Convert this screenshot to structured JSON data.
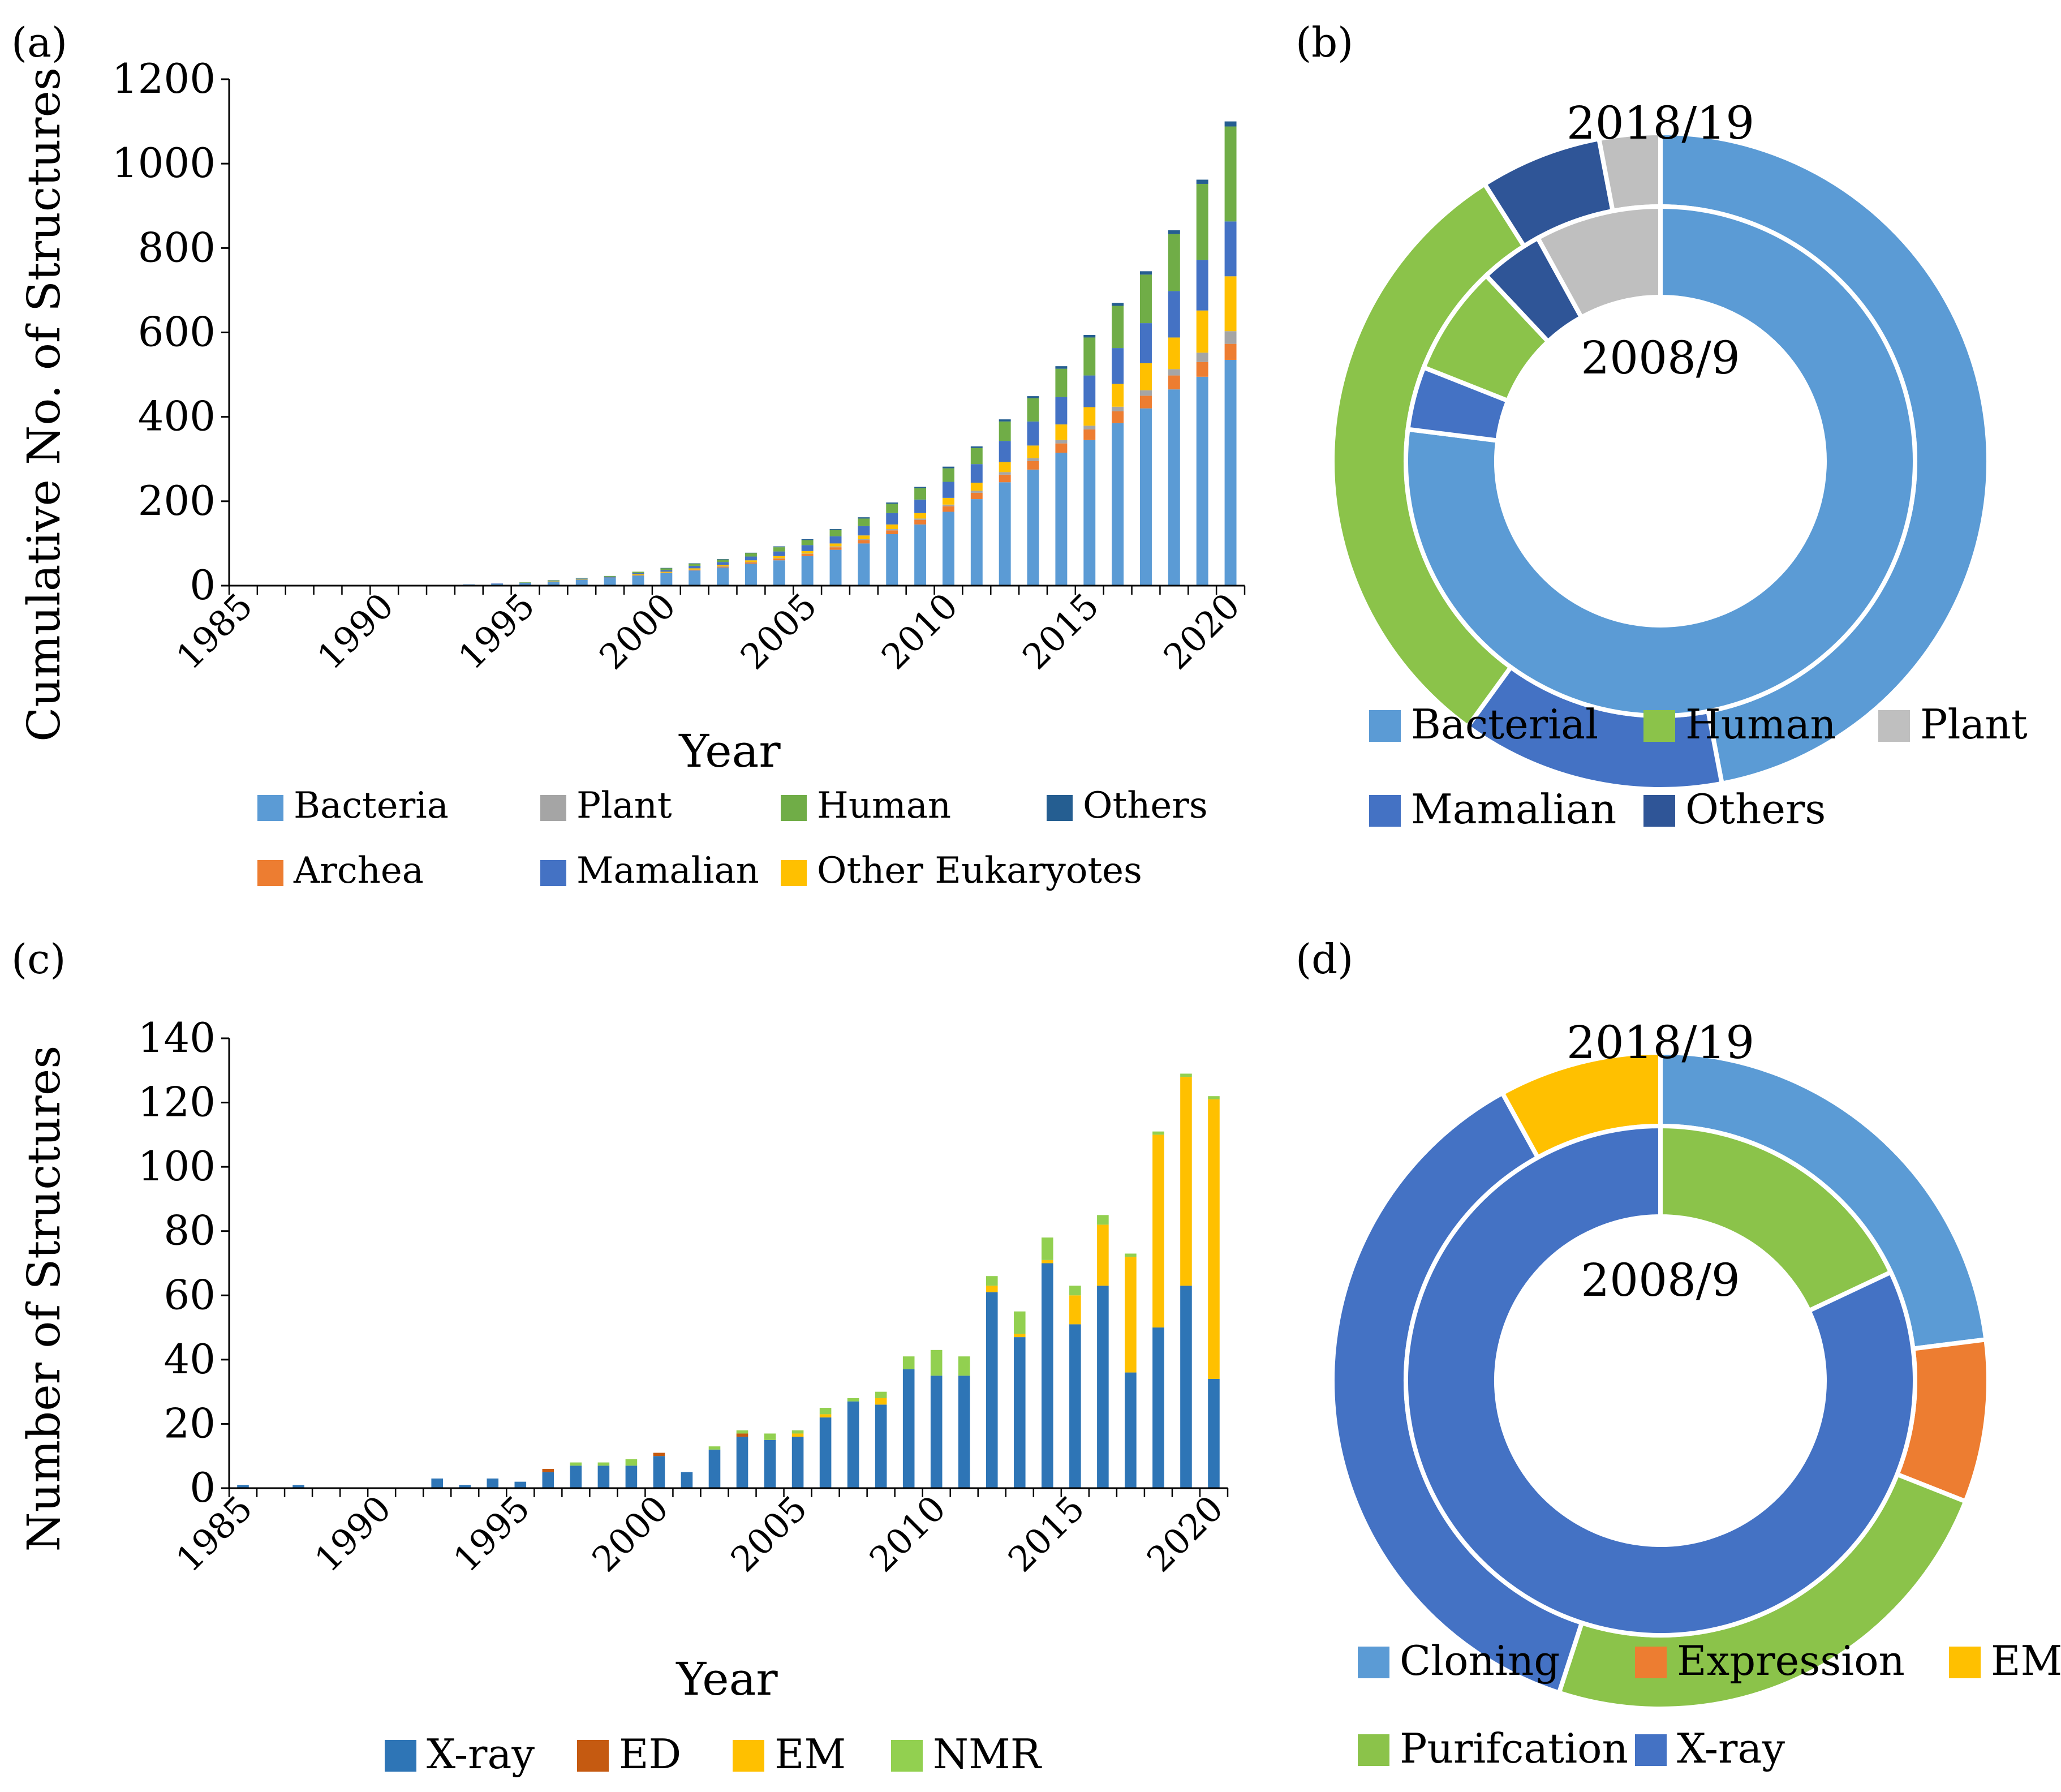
{
  "panels": {
    "a": {
      "label": "(a)"
    },
    "b": {
      "label": "(b)"
    },
    "c": {
      "label": "(c)"
    },
    "d": {
      "label": "(d)"
    }
  },
  "chart_data": [
    {
      "id": "a",
      "type": "bar",
      "stacked": true,
      "title": "",
      "xlabel": "Year",
      "ylabel": "Cumulative No. of Structures",
      "ylim": [
        0,
        1200
      ],
      "yticks": [
        0,
        200,
        400,
        600,
        800,
        1000,
        1200
      ],
      "xtick_labels": [
        "1985",
        "1990",
        "1995",
        "2000",
        "2005",
        "2010",
        "2015",
        "2020"
      ],
      "categories": [
        1985,
        1986,
        1987,
        1988,
        1989,
        1990,
        1991,
        1992,
        1993,
        1994,
        1995,
        1996,
        1997,
        1998,
        1999,
        2000,
        2001,
        2002,
        2003,
        2004,
        2005,
        2006,
        2007,
        2008,
        2009,
        2010,
        2011,
        2012,
        2013,
        2014,
        2015,
        2016,
        2017,
        2018,
        2019,
        2020
      ],
      "series": [
        {
          "name": "Bacteria",
          "color": "#5B9BD5",
          "values": [
            1,
            1,
            1,
            1,
            1,
            1,
            1,
            2,
            3,
            4,
            6,
            10,
            14,
            18,
            24,
            30,
            36,
            43,
            52,
            60,
            70,
            85,
            100,
            122,
            145,
            175,
            205,
            245,
            275,
            315,
            345,
            385,
            420,
            465,
            495,
            535
          ]
        },
        {
          "name": "Archea",
          "color": "#ED7D31",
          "values": [
            0,
            0,
            0,
            0,
            0,
            0,
            0,
            0,
            0,
            0,
            0,
            0,
            0,
            0,
            1,
            1,
            2,
            2,
            3,
            4,
            5,
            6,
            8,
            9,
            11,
            13,
            15,
            18,
            20,
            22,
            25,
            28,
            30,
            33,
            35,
            38
          ]
        },
        {
          "name": "Plant",
          "color": "#A5A5A5",
          "values": [
            0,
            0,
            0,
            0,
            0,
            0,
            0,
            0,
            0,
            0,
            0,
            0,
            0,
            0,
            0,
            0,
            0,
            1,
            1,
            1,
            1,
            2,
            2,
            3,
            3,
            4,
            5,
            6,
            7,
            8,
            9,
            11,
            13,
            15,
            22,
            30
          ]
        },
        {
          "name": "Other Eukaryotes",
          "color": "#FFC000",
          "values": [
            0,
            0,
            0,
            0,
            0,
            0,
            0,
            0,
            0,
            0,
            0,
            1,
            1,
            1,
            2,
            2,
            3,
            3,
            4,
            5,
            6,
            7,
            9,
            11,
            13,
            16,
            19,
            24,
            30,
            37,
            44,
            54,
            64,
            75,
            100,
            130
          ]
        },
        {
          "name": "Mamalian",
          "color": "#4472C4",
          "values": [
            0,
            0,
            0,
            0,
            0,
            0,
            0,
            0,
            0,
            1,
            1,
            1,
            2,
            2,
            3,
            4,
            6,
            7,
            9,
            11,
            14,
            17,
            22,
            27,
            32,
            38,
            44,
            50,
            57,
            65,
            75,
            85,
            95,
            110,
            120,
            130
          ]
        },
        {
          "name": "Human",
          "color": "#70AD47",
          "values": [
            0,
            0,
            0,
            0,
            0,
            0,
            0,
            0,
            0,
            0,
            1,
            1,
            1,
            2,
            3,
            4,
            5,
            6,
            8,
            10,
            12,
            15,
            18,
            22,
            27,
            32,
            38,
            46,
            55,
            67,
            90,
            100,
            115,
            135,
            180,
            225
          ]
        },
        {
          "name": "Others",
          "color": "#255E91",
          "values": [
            0,
            0,
            0,
            0,
            0,
            0,
            0,
            0,
            0,
            0,
            0,
            0,
            0,
            0,
            0,
            1,
            1,
            1,
            1,
            2,
            2,
            2,
            3,
            3,
            3,
            4,
            4,
            5,
            5,
            6,
            6,
            7,
            8,
            9,
            10,
            12
          ]
        }
      ],
      "legend": {
        "position": "bottom",
        "entries": [
          "Bacteria",
          "Plant",
          "Human",
          "Others",
          "Archea",
          "Mamalian",
          "Other Eukaryotes"
        ]
      }
    },
    {
      "id": "b",
      "type": "pie",
      "subtype": "donut",
      "outer_label": "2018/19",
      "inner_label": "2008/9",
      "outer_ring": [
        {
          "name": "Bacterial",
          "value": 47,
          "color": "#5B9BD5"
        },
        {
          "name": "Mamalian",
          "value": 13,
          "color": "#4472C4"
        },
        {
          "name": "Human",
          "value": 31,
          "color": "#8BC34A"
        },
        {
          "name": "Others",
          "value": 6,
          "color": "#2F5597"
        },
        {
          "name": "Plant",
          "value": 3,
          "color": "#BFBFBF"
        }
      ],
      "inner_ring": [
        {
          "name": "Bacterial",
          "value": 77,
          "color": "#5B9BD5"
        },
        {
          "name": "Mamalian",
          "value": 4,
          "color": "#4472C4"
        },
        {
          "name": "Human",
          "value": 7,
          "color": "#8BC34A"
        },
        {
          "name": "Others",
          "value": 4,
          "color": "#2F5597"
        },
        {
          "name": "Plant",
          "value": 8,
          "color": "#BFBFBF"
        }
      ],
      "legend": {
        "position": "bottom",
        "entries": [
          "Bacterial",
          "Human",
          "Plant",
          "Mamalian",
          "Others"
        ]
      }
    },
    {
      "id": "c",
      "type": "bar",
      "stacked": true,
      "title": "",
      "xlabel": "Year",
      "ylabel": "Number of Structures",
      "ylim": [
        0,
        140
      ],
      "yticks": [
        0,
        20,
        40,
        60,
        80,
        100,
        120,
        140
      ],
      "xtick_labels": [
        "1985",
        "1990",
        "1995",
        "2000",
        "2005",
        "2010",
        "2015",
        "2020"
      ],
      "categories": [
        1985,
        1986,
        1987,
        1988,
        1989,
        1990,
        1991,
        1992,
        1993,
        1994,
        1995,
        1996,
        1997,
        1998,
        1999,
        2000,
        2001,
        2002,
        2003,
        2004,
        2005,
        2006,
        2007,
        2008,
        2009,
        2010,
        2011,
        2012,
        2013,
        2014,
        2015,
        2016,
        2017,
        2018,
        2019,
        2020
      ],
      "series": [
        {
          "name": "X-ray",
          "color": "#2E75B6",
          "values": [
            1,
            0,
            1,
            0,
            0,
            0,
            0,
            3,
            1,
            3,
            2,
            5,
            7,
            7,
            7,
            10,
            5,
            12,
            16,
            15,
            16,
            22,
            27,
            26,
            37,
            35,
            35,
            61,
            47,
            70,
            51,
            63,
            36,
            50,
            63,
            34
          ]
        },
        {
          "name": "ED",
          "color": "#C55A11",
          "values": [
            0,
            0,
            0,
            0,
            0,
            0,
            0,
            0,
            0,
            0,
            0,
            1,
            0,
            0,
            0,
            1,
            0,
            0,
            1,
            0,
            0,
            0,
            0,
            0,
            0,
            0,
            0,
            0,
            0,
            0,
            0,
            0,
            0,
            0,
            0,
            0
          ]
        },
        {
          "name": "EM",
          "color": "#FFC000",
          "values": [
            0,
            0,
            0,
            0,
            0,
            0,
            0,
            0,
            0,
            0,
            0,
            0,
            0,
            0,
            0,
            0,
            0,
            0,
            0,
            0,
            1,
            1,
            0,
            2,
            0,
            0,
            0,
            2,
            1,
            1,
            9,
            19,
            36,
            60,
            65,
            87
          ]
        },
        {
          "name": "NMR",
          "color": "#92D050",
          "values": [
            0,
            0,
            0,
            0,
            0,
            0,
            0,
            0,
            0,
            0,
            0,
            0,
            1,
            1,
            2,
            0,
            0,
            1,
            1,
            2,
            1,
            2,
            1,
            2,
            4,
            8,
            6,
            3,
            7,
            7,
            3,
            3,
            1,
            1,
            1,
            1
          ]
        }
      ],
      "legend": {
        "position": "bottom",
        "entries": [
          "X-ray",
          "ED",
          "EM",
          "NMR"
        ]
      }
    },
    {
      "id": "d",
      "type": "pie",
      "subtype": "donut",
      "outer_label": "2018/19",
      "inner_label": "2008/9",
      "outer_ring": [
        {
          "name": "Cloning",
          "value": 23,
          "color": "#5B9BD5"
        },
        {
          "name": "Expression",
          "value": 8,
          "color": "#ED7D31"
        },
        {
          "name": "Purifcation",
          "value": 24,
          "color": "#8BC34A"
        },
        {
          "name": "X-ray",
          "value": 37,
          "color": "#4472C4"
        },
        {
          "name": "EM",
          "value": 8,
          "color": "#FFC000"
        }
      ],
      "inner_ring": [
        {
          "name": "Purifcation",
          "value": 18,
          "color": "#8BC34A"
        },
        {
          "name": "X-ray",
          "value": 82,
          "color": "#4472C4"
        }
      ],
      "legend": {
        "position": "bottom",
        "entries": [
          "Cloning",
          "Expression",
          "EM",
          "Purifcation",
          "X-ray"
        ]
      }
    }
  ]
}
